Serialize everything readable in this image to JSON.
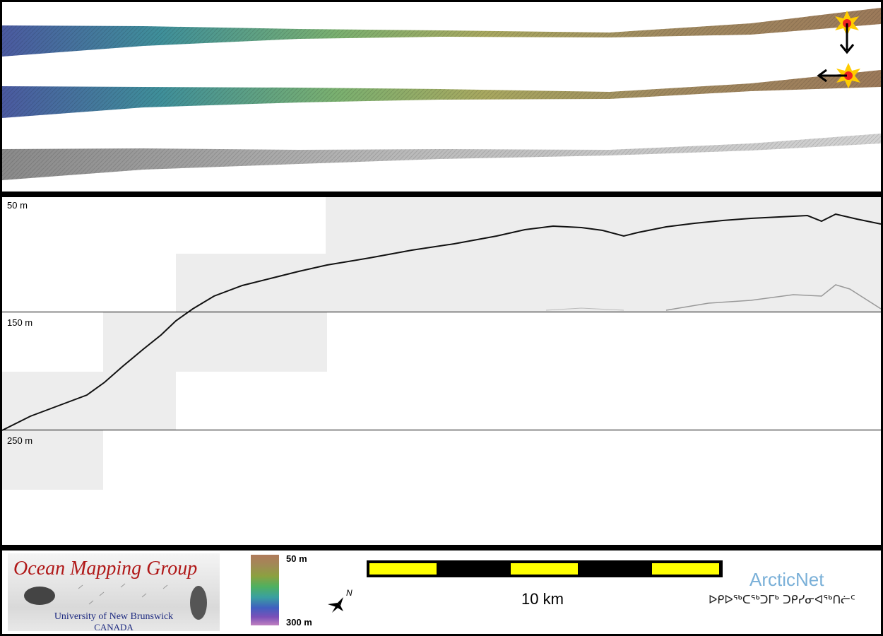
{
  "profile": {
    "depth_labels": [
      "50 m",
      "150 m",
      "250 m"
    ]
  },
  "footer": {
    "logo": {
      "title": "Ocean Mapping Group",
      "subtitle_line1": "University of New Brunswick",
      "subtitle_line2": "CANADA"
    },
    "color_scale": {
      "top_label": "50 m",
      "bottom_label": "300 m"
    },
    "north_arrow": {
      "label": "N"
    },
    "scale_bar": {
      "label": "10 km"
    },
    "arcticnet": {
      "name": "ArcticNet",
      "syllabics": "ᐅᑭᐅᖅᑕᖅᑐᒥᒃ ᑐᑭᓯᓂᐊᖅᑎᓖᑦ"
    }
  },
  "colors": {
    "frame": "#000000",
    "scale_yellow": "#ffff00",
    "logo_red": "#b01818",
    "logo_blue": "#1d2a80",
    "arcticnet_blue": "#7ab0d8"
  }
}
